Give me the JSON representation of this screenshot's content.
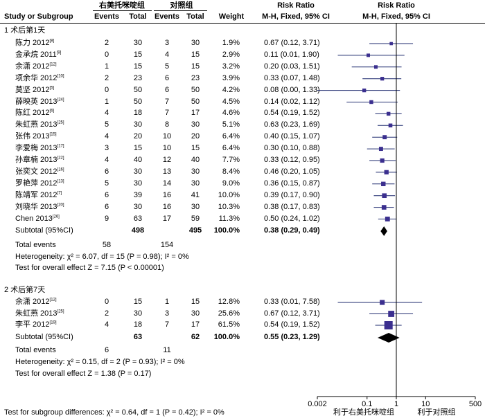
{
  "header": {
    "group_exp": "右美托咪啶组",
    "group_ctl": "对照组",
    "rr_left": "Risk Ratio",
    "rr_right": "Risk Ratio",
    "study": "Study or Subgroup",
    "events1": "Events",
    "total1": "Total",
    "events2": "Events",
    "total2": "Total",
    "weight": "Weight",
    "method_left": "M-H, Fixed, 95% CI",
    "method_right": "M-H, Fixed, 95% CI"
  },
  "subgroups": [
    {
      "title": "1 术后第1天",
      "subtotal_label": "Subtotal (95%CI)",
      "subtotal_total1": "498",
      "subtotal_total2": "495",
      "subtotal_weight": "100.0%",
      "subtotal_ci": "0.38 (0.29, 0.49)",
      "total_events_label": "Total events",
      "total_events1": "58",
      "total_events2": "154",
      "heterogeneity": "Heterogeneity: χ² = 6.07, df = 15 (P = 0.98); I² = 0%",
      "overall": "Test for overall effect Z = 7.15 (P < 0.00001)"
    },
    {
      "title": "2 术后第7天",
      "subtotal_label": "Subtotal (95%CI)",
      "subtotal_total1": "63",
      "subtotal_total2": "62",
      "subtotal_weight": "100.0%",
      "subtotal_ci": "0.55 (0.23, 1.29)",
      "total_events_label": "Total events",
      "total_events1": "6",
      "total_events2": "11",
      "heterogeneity": "Heterogeneity: χ² = 0.15, df = 2 (P = 0.93); I² = 0%",
      "overall": "Test for overall effect Z = 1.38 (P = 0.17)"
    }
  ],
  "footer": {
    "subgroup_diff": "Test for subgroup differences: χ² = 0.64, df = 1 (P = 0.42); I² = 0%",
    "favours_left": "利于右美托咪啶组",
    "favours_right": "利于对照组"
  },
  "chart_data": {
    "type": "forest",
    "x_scale": "log",
    "xlim": [
      0.002,
      500
    ],
    "x_ticks": [
      "0.002",
      "0.1",
      "1",
      "10",
      "500"
    ],
    "studies": [
      {
        "group": 0,
        "name": "陈力 2012",
        "ref": "[8]",
        "events1": 2,
        "total1": 30,
        "events2": 3,
        "total2": 30,
        "weight": "1.9%",
        "rr": 0.67,
        "lo": 0.12,
        "hi": 3.71,
        "ci": "0.67 (0.12, 3.71)"
      },
      {
        "group": 0,
        "name": "金承烷 2011",
        "ref": "[9]",
        "events1": 0,
        "total1": 15,
        "events2": 4,
        "total2": 15,
        "weight": "2.9%",
        "rr": 0.11,
        "lo": 0.01,
        "hi": 1.9,
        "ci": "0.11 (0.01, 1.90)"
      },
      {
        "group": 0,
        "name": "余潇 2012",
        "ref": "[12]",
        "events1": 1,
        "total1": 15,
        "events2": 5,
        "total2": 15,
        "weight": "3.2%",
        "rr": 0.2,
        "lo": 0.03,
        "hi": 1.51,
        "ci": "0.20 (0.03, 1.51)"
      },
      {
        "group": 0,
        "name": "项余华 2012",
        "ref": "[10]",
        "events1": 2,
        "total1": 23,
        "events2": 6,
        "total2": 23,
        "weight": "3.9%",
        "rr": 0.33,
        "lo": 0.07,
        "hi": 1.48,
        "ci": "0.33 (0.07, 1.48)"
      },
      {
        "group": 0,
        "name": "莫坚 2012",
        "ref": "[5]",
        "events1": 0,
        "total1": 50,
        "events2": 6,
        "total2": 50,
        "weight": "4.2%",
        "rr": 0.08,
        "lo": 0.0,
        "hi": 1.33,
        "ci": "0.08 (0.00, 1.33)"
      },
      {
        "group": 0,
        "name": "薛映英 2013",
        "ref": "[24]",
        "events1": 1,
        "total1": 50,
        "events2": 7,
        "total2": 50,
        "weight": "4.5%",
        "rr": 0.14,
        "lo": 0.02,
        "hi": 1.12,
        "ci": "0.14 (0.02, 1.12)"
      },
      {
        "group": 0,
        "name": "陈红 2012",
        "ref": "[6]",
        "events1": 4,
        "total1": 18,
        "events2": 7,
        "total2": 17,
        "weight": "4.6%",
        "rr": 0.54,
        "lo": 0.19,
        "hi": 1.52,
        "ci": "0.54 (0.19, 1.52)"
      },
      {
        "group": 0,
        "name": "朱虹燕 2013",
        "ref": "[25]",
        "events1": 5,
        "total1": 30,
        "events2": 8,
        "total2": 30,
        "weight": "5.1%",
        "rr": 0.63,
        "lo": 0.23,
        "hi": 1.69,
        "ci": "0.63 (0.23, 1.69)"
      },
      {
        "group": 0,
        "name": "张伟 2013",
        "ref": "[15]",
        "events1": 4,
        "total1": 20,
        "events2": 10,
        "total2": 20,
        "weight": "6.4%",
        "rr": 0.4,
        "lo": 0.15,
        "hi": 1.07,
        "ci": "0.40 (0.15, 1.07)"
      },
      {
        "group": 0,
        "name": "李爱梅 2013",
        "ref": "[17]",
        "events1": 3,
        "total1": 15,
        "events2": 10,
        "total2": 15,
        "weight": "6.4%",
        "rr": 0.3,
        "lo": 0.1,
        "hi": 0.88,
        "ci": "0.30 (0.10, 0.88)"
      },
      {
        "group": 0,
        "name": "孙章楠 2013",
        "ref": "[22]",
        "events1": 4,
        "total1": 40,
        "events2": 12,
        "total2": 40,
        "weight": "7.7%",
        "rr": 0.33,
        "lo": 0.12,
        "hi": 0.95,
        "ci": "0.33 (0.12, 0.95)"
      },
      {
        "group": 0,
        "name": "张奕文 2012",
        "ref": "[16]",
        "events1": 6,
        "total1": 30,
        "events2": 13,
        "total2": 30,
        "weight": "8.4%",
        "rr": 0.46,
        "lo": 0.2,
        "hi": 1.05,
        "ci": "0.46 (0.20, 1.05)"
      },
      {
        "group": 0,
        "name": "罗艳萍 2012",
        "ref": "[13]",
        "events1": 5,
        "total1": 30,
        "events2": 14,
        "total2": 30,
        "weight": "9.0%",
        "rr": 0.36,
        "lo": 0.15,
        "hi": 0.87,
        "ci": "0.36 (0.15, 0.87)"
      },
      {
        "group": 0,
        "name": "陈靖军 2012",
        "ref": "[7]",
        "events1": 6,
        "total1": 39,
        "events2": 16,
        "total2": 41,
        "weight": "10.0%",
        "rr": 0.39,
        "lo": 0.17,
        "hi": 0.9,
        "ci": "0.39 (0.17, 0.90)"
      },
      {
        "group": 0,
        "name": "刘晓华 2013",
        "ref": "[20]",
        "events1": 6,
        "total1": 30,
        "events2": 16,
        "total2": 30,
        "weight": "10.3%",
        "rr": 0.38,
        "lo": 0.17,
        "hi": 0.83,
        "ci": "0.38 (0.17, 0.83)"
      },
      {
        "group": 0,
        "name": "Chen 2013",
        "ref": "[26]",
        "events1": 9,
        "total1": 63,
        "events2": 17,
        "total2": 59,
        "weight": "11.3%",
        "rr": 0.5,
        "lo": 0.24,
        "hi": 1.02,
        "ci": "0.50 (0.24, 1.02)"
      },
      {
        "group": 1,
        "name": "余潇 2012",
        "ref": "[12]",
        "events1": 0,
        "total1": 15,
        "events2": 1,
        "total2": 15,
        "weight": "12.8%",
        "rr": 0.33,
        "lo": 0.01,
        "hi": 7.58,
        "ci": "0.33 (0.01, 7.58)"
      },
      {
        "group": 1,
        "name": "朱虹燕 2013",
        "ref": "[25]",
        "events1": 2,
        "total1": 30,
        "events2": 3,
        "total2": 30,
        "weight": "25.6%",
        "rr": 0.67,
        "lo": 0.12,
        "hi": 3.71,
        "ci": "0.67 (0.12, 3.71)"
      },
      {
        "group": 1,
        "name": "李平 2012",
        "ref": "[19]",
        "events1": 4,
        "total1": 18,
        "events2": 7,
        "total2": 17,
        "weight": "61.5%",
        "rr": 0.54,
        "lo": 0.19,
        "hi": 1.52,
        "ci": "0.54 (0.19, 1.52)"
      }
    ],
    "pooled": [
      {
        "group": 0,
        "rr": 0.38,
        "lo": 0.29,
        "hi": 0.49
      },
      {
        "group": 1,
        "rr": 0.55,
        "lo": 0.23,
        "hi": 1.29
      }
    ]
  }
}
